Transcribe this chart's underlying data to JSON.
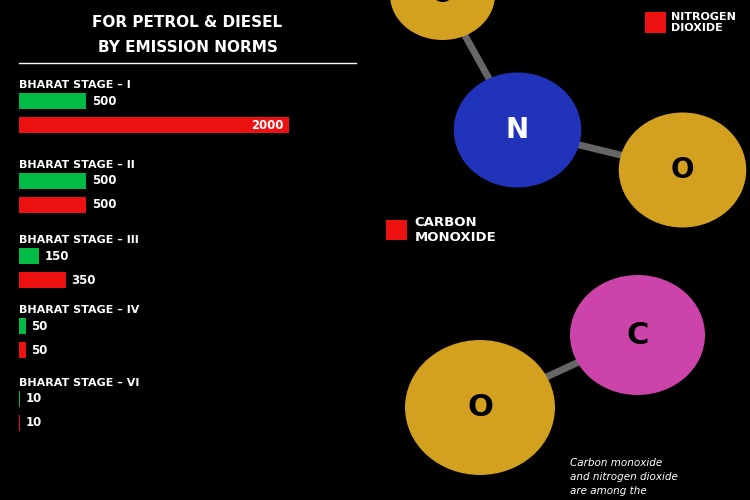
{
  "background_color": "#000000",
  "title_line1": "FOR PETROL & DIESEL",
  "title_line2": "BY EMISSION NORMS",
  "stages": [
    {
      "label": "BHARAT STAGE – I",
      "petrol": 500,
      "diesel": 2000
    },
    {
      "label": "BHARAT STAGE – II",
      "petrol": 500,
      "diesel": 500
    },
    {
      "label": "BHARAT STAGE – III",
      "petrol": 150,
      "diesel": 350
    },
    {
      "label": "BHARAT STAGE – IV",
      "petrol": 50,
      "diesel": 50
    },
    {
      "label": "BHARAT STAGE – VI",
      "petrol": 10,
      "diesel": 10
    }
  ],
  "max_val": 2000,
  "green_color": "#00bb44",
  "red_color": "#ee1111",
  "white_color": "#ffffff",
  "molecule_N_color": "#2233bb",
  "molecule_O_color": "#d4a020",
  "molecule_C_color": "#cc44aa",
  "molecule_bond_color": "#666666",
  "carbon_monoxide_label": "CARBON\nMONOXIDE",
  "bottom_text": "Carbon monoxide\nand nitrogen dioxide\nare among the",
  "nitrogen_dioxide_label": "NITROGEN\nDIOXIDE"
}
